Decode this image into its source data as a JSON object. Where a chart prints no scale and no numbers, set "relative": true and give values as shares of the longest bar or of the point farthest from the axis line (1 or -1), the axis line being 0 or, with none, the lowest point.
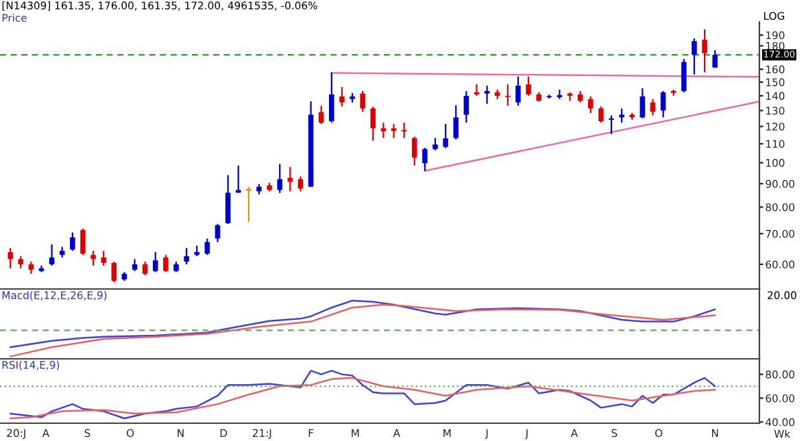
{
  "chart_data": [
    {
      "type": "candlestick",
      "title": "[N14309] 161.35, 176.00, 161.35, 172.00, 4961535, -0.06%",
      "subtitle": "Price",
      "x": [
        "2020-07-20",
        "2020-07-27",
        "2020-08-03",
        "2020-08-10",
        "2020-08-17",
        "2020-08-24",
        "2020-08-31",
        "2020-09-07",
        "2020-09-14",
        "2020-09-21",
        "2020-09-28",
        "2020-10-05",
        "2020-10-12",
        "2020-10-19",
        "2020-10-26",
        "2020-11-02",
        "2020-11-09",
        "2020-11-16",
        "2020-11-23",
        "2020-11-30",
        "2020-12-07",
        "2020-12-14",
        "2020-12-21",
        "2020-12-28",
        "2021-01-04",
        "2021-01-11",
        "2021-01-18",
        "2021-01-25",
        "2021-02-01",
        "2021-02-08",
        "2021-02-15",
        "2021-02-22",
        "2021-03-01",
        "2021-03-08",
        "2021-03-15",
        "2021-03-22",
        "2021-03-29",
        "2021-04-05",
        "2021-04-12",
        "2021-04-19",
        "2021-04-26",
        "2021-05-03",
        "2021-05-10",
        "2021-05-17",
        "2021-05-24",
        "2021-05-31",
        "2021-06-07",
        "2021-06-14",
        "2021-06-21",
        "2021-06-28",
        "2021-07-05",
        "2021-07-12",
        "2021-07-19",
        "2021-07-26",
        "2021-08-02",
        "2021-08-09",
        "2021-08-16",
        "2021-08-23",
        "2021-08-30",
        "2021-09-06",
        "2021-09-13",
        "2021-09-20",
        "2021-09-27",
        "2021-10-04",
        "2021-10-11",
        "2021-10-18",
        "2021-10-25",
        "2021-11-01",
        "2021-11-08"
      ],
      "ohlc": [
        [
          63.8,
          65.1,
          58.8,
          61.6
        ],
        [
          61.6,
          62.5,
          58.8,
          60.0
        ],
        [
          60.0,
          60.8,
          57.2,
          58.4
        ],
        [
          58.0,
          59.6,
          57.7,
          58.8
        ],
        [
          60.0,
          66.3,
          59.6,
          62.1
        ],
        [
          62.9,
          65.5,
          62.1,
          64.2
        ],
        [
          64.6,
          70.4,
          64.2,
          68.7
        ],
        [
          71.3,
          71.8,
          62.9,
          63.3
        ],
        [
          62.9,
          64.2,
          59.6,
          61.6
        ],
        [
          62.1,
          64.2,
          59.6,
          60.4
        ],
        [
          60.4,
          60.8,
          54.8,
          55.2
        ],
        [
          55.6,
          57.7,
          55.2,
          57.2
        ],
        [
          58.4,
          61.6,
          58.0,
          60.0
        ],
        [
          60.0,
          60.8,
          56.8,
          57.2
        ],
        [
          58.0,
          63.8,
          57.7,
          61.2
        ],
        [
          62.1,
          62.9,
          57.7,
          58.0
        ],
        [
          58.0,
          60.8,
          57.7,
          60.0
        ],
        [
          60.8,
          65.1,
          60.0,
          62.5
        ],
        [
          62.9,
          65.9,
          62.5,
          63.8
        ],
        [
          63.3,
          68.3,
          62.9,
          67.1
        ],
        [
          68.3,
          73.5,
          67.1,
          73.0
        ],
        [
          73.8,
          94.0,
          73.5,
          86.0
        ],
        [
          86.0,
          98.6,
          86.0,
          87.2
        ],
        [
          87.2,
          88.6,
          74.3,
          87.2
        ],
        [
          86.6,
          89.8,
          85.3,
          88.6
        ],
        [
          89.2,
          90.4,
          86.6,
          87.2
        ],
        [
          87.2,
          99.3,
          85.9,
          92.1
        ],
        [
          92.7,
          97.9,
          86.6,
          90.8
        ],
        [
          92.1,
          93.3,
          86.6,
          87.8
        ],
        [
          88.6,
          136.2,
          88.6,
          127.3
        ],
        [
          129.0,
          133.2,
          121.5,
          122.3
        ],
        [
          123.2,
          157.5,
          122.3,
          141.0
        ],
        [
          139.6,
          146.3,
          132.7,
          135.4
        ],
        [
          137.7,
          142.0,
          135.4,
          139.6
        ],
        [
          141.6,
          143.4,
          129.2,
          131.4
        ],
        [
          131.4,
          132.5,
          111.7,
          118.9
        ],
        [
          118.9,
          122.3,
          113.2,
          117.1
        ],
        [
          118.9,
          121.5,
          113.2,
          117.3
        ],
        [
          117.9,
          122.3,
          113.2,
          117.1
        ],
        [
          113.2,
          114.0,
          98.6,
          102.6
        ],
        [
          99.7,
          107.8,
          95.9,
          107.1
        ],
        [
          107.1,
          113.2,
          106.4,
          109.6
        ],
        [
          108.3,
          121.5,
          107.6,
          113.0
        ],
        [
          113.2,
          133.5,
          112.4,
          125.6
        ],
        [
          127.3,
          143.3,
          122.3,
          140.0
        ],
        [
          142.5,
          148.3,
          140.0,
          141.0
        ],
        [
          141.6,
          147.3,
          134.5,
          143.4
        ],
        [
          142.5,
          144.4,
          137.7,
          140.0
        ],
        [
          140.0,
          148.3,
          133.2,
          139.2
        ],
        [
          135.4,
          154.3,
          133.2,
          147.3
        ],
        [
          148.3,
          154.3,
          140.0,
          141.0
        ],
        [
          141.0,
          142.5,
          136.0,
          136.5
        ],
        [
          139.0,
          140.8,
          138.0,
          139.8
        ],
        [
          139.0,
          144.4,
          137.7,
          140.5
        ],
        [
          141.6,
          142.5,
          136.5,
          140.0
        ],
        [
          141.0,
          143.4,
          135.4,
          136.5
        ],
        [
          137.7,
          139.6,
          128.4,
          131.4
        ],
        [
          131.4,
          132.7,
          122.3,
          123.2
        ],
        [
          124.1,
          126.8,
          115.5,
          125.0
        ],
        [
          125.6,
          131.4,
          122.3,
          127.3
        ],
        [
          127.3,
          128.4,
          124.1,
          125.6
        ],
        [
          125.6,
          145.4,
          125.0,
          139.6
        ],
        [
          135.4,
          137.7,
          126.8,
          129.2
        ],
        [
          130.0,
          143.4,
          125.6,
          142.5
        ],
        [
          143.4,
          144.4,
          140.0,
          142.0
        ],
        [
          143.4,
          168.5,
          142.5,
          166.0
        ],
        [
          172.0,
          186.9,
          155.9,
          184.3
        ],
        [
          185.6,
          195.5,
          157.5,
          173.4
        ],
        [
          161.35,
          176.0,
          161.35,
          172.0
        ]
      ],
      "colors": [
        "#e00000",
        "#e00000",
        "#e00000",
        "#0000cc",
        "#0000cc",
        "#0000cc",
        "#0000cc",
        "#e00000",
        "#e00000",
        "#e00000",
        "#e00000",
        "#0000cc",
        "#0000cc",
        "#e00000",
        "#0000cc",
        "#e00000",
        "#0000cc",
        "#0000cc",
        "#0000cc",
        "#0000cc",
        "#0000cc",
        "#0000cc",
        "#0000cc",
        "#e69500",
        "#0000cc",
        "#e00000",
        "#0000cc",
        "#e00000",
        "#e00000",
        "#0000cc",
        "#e00000",
        "#0000cc",
        "#e00000",
        "#0000cc",
        "#e00000",
        "#e00000",
        "#e00000",
        "#e00000",
        "#e00000",
        "#e00000",
        "#0000cc",
        "#0000cc",
        "#0000cc",
        "#0000cc",
        "#0000cc",
        "#e00000",
        "#0000cc",
        "#e00000",
        "#e00000",
        "#0000cc",
        "#e00000",
        "#e00000",
        "#0000cc",
        "#0000cc",
        "#e00000",
        "#e00000",
        "#e00000",
        "#e00000",
        "#0000cc",
        "#0000cc",
        "#e00000",
        "#0000cc",
        "#e00000",
        "#0000cc",
        "#e00000",
        "#0000cc",
        "#0000cc",
        "#e00000",
        "#0000cc"
      ],
      "series": [
        {
          "type": "line",
          "x": [
            "2021-02-22",
            "2021-12-08"
          ],
          "values": [
            157,
            154
          ],
          "color": "#e070b0"
        },
        {
          "type": "line",
          "x": [
            "2021-04-26",
            "2021-12-08"
          ],
          "values": [
            96,
            136
          ],
          "color": "#e070b0"
        }
      ],
      "ref_lines": [
        {
          "axis": "y",
          "value": 172,
          "label": "172.00",
          "color": "#339933",
          "line_style": "dashed"
        }
      ],
      "log": true,
      "ylim": [
        53,
        203
      ],
      "yticks": [
        190,
        180,
        160,
        150,
        140,
        130,
        120,
        110,
        100,
        {
          "value": 90,
          "label": "90.00"
        },
        {
          "value": 80,
          "label": "80.00"
        },
        {
          "value": 70,
          "label": "70.00"
        },
        {
          "value": 60,
          "label": "60.00"
        }
      ],
      "xlim": [
        "2020-07-13",
        "2021-12-08"
      ],
      "tick_labels": "y",
      "annotations": [
        "LOG"
      ]
    },
    {
      "type": "line",
      "title": "Macd(E,12,E,26,E,9)",
      "relative": true,
      "tick_labels": false,
      "xlim": [
        "2020-07-13",
        "2021-12-08"
      ],
      "series": [
        {
          "color": "#4444cc",
          "x": [
            "2020-07-20",
            "2020-08-17",
            "2020-09-07",
            "2020-09-21",
            "2020-10-26",
            "2020-11-30",
            "2020-12-14",
            "2021-01-11",
            "2021-02-01",
            "2021-02-08",
            "2021-02-22",
            "2021-03-08",
            "2021-03-22",
            "2021-04-05",
            "2021-05-03",
            "2021-05-10",
            "2021-05-31",
            "2021-06-28",
            "2021-07-26",
            "2021-08-09",
            "2021-09-06",
            "2021-09-20",
            "2021-10-11",
            "2021-10-25",
            "2021-11-01",
            "2021-11-08"
          ],
          "values": [
            0.2,
            0.31,
            0.36,
            0.38,
            0.4,
            0.45,
            0.52,
            0.65,
            0.69,
            0.73,
            0.88,
            1.0,
            0.98,
            0.93,
            0.78,
            0.76,
            0.85,
            0.87,
            0.85,
            0.82,
            0.67,
            0.64,
            0.64,
            0.73,
            0.79,
            0.85
          ]
        },
        {
          "color": "#e06666",
          "x": [
            "2020-07-20",
            "2020-08-17",
            "2020-09-21",
            "2020-10-26",
            "2020-11-30",
            "2021-01-04",
            "2021-02-08",
            "2021-03-08",
            "2021-03-29",
            "2021-04-12",
            "2021-05-17",
            "2021-06-21",
            "2021-07-26",
            "2021-08-30",
            "2021-10-04",
            "2021-11-01",
            "2021-11-08"
          ],
          "values": [
            0.04,
            0.2,
            0.34,
            0.38,
            0.43,
            0.55,
            0.64,
            0.88,
            0.93,
            0.91,
            0.82,
            0.85,
            0.84,
            0.75,
            0.67,
            0.73,
            0.75
          ]
        }
      ],
      "ref_lines": [
        {
          "axis": "y",
          "value": 0.49,
          "color": "#66aa66",
          "line_style": "dashed"
        }
      ],
      "annotations": [
        "20.00"
      ]
    },
    {
      "type": "line",
      "title": "RSI(14,E,9)",
      "xlabel": "Wk",
      "xlim": [
        "2020-07-13",
        "2021-12-08"
      ],
      "ylim": [
        39,
        93
      ],
      "yticks": [
        {
          "value": 80,
          "label": "80.00"
        },
        {
          "value": 60,
          "label": "60.00"
        },
        {
          "value": 40,
          "label": "40.00"
        }
      ],
      "xticks": [
        {
          "value": "2020-07-24",
          "label": "20:J"
        },
        {
          "value": "2020-08-13",
          "label": "A"
        },
        {
          "value": "2020-09-10",
          "label": "S"
        },
        {
          "value": "2020-10-09",
          "label": "O"
        },
        {
          "value": "2020-11-12",
          "label": "N"
        },
        {
          "value": "2020-12-11",
          "label": "D"
        },
        {
          "value": "2021-01-06",
          "label": "21:J"
        },
        {
          "value": "2021-02-08",
          "label": "F"
        },
        {
          "value": "2021-03-10",
          "label": "M"
        },
        {
          "value": "2021-04-07",
          "label": "A"
        },
        {
          "value": "2021-05-11",
          "label": "M"
        },
        {
          "value": "2021-06-07",
          "label": "J"
        },
        {
          "value": "2021-07-04",
          "label": "J"
        },
        {
          "value": "2021-08-05",
          "label": "A"
        },
        {
          "value": "2021-09-01",
          "label": "S"
        },
        {
          "value": "2021-10-01",
          "label": "O"
        },
        {
          "value": "2021-11-08",
          "label": "N"
        }
      ],
      "series": [
        {
          "color": "#4444cc",
          "x": [
            "2020-07-20",
            "2020-07-27",
            "2020-08-10",
            "2020-08-17",
            "2020-08-31",
            "2020-09-07",
            "2020-09-21",
            "2020-10-05",
            "2020-10-19",
            "2020-10-26",
            "2020-11-02",
            "2020-11-09",
            "2020-11-23",
            "2020-12-07",
            "2020-12-14",
            "2020-12-28",
            "2021-01-11",
            "2021-01-18",
            "2021-02-01",
            "2021-02-08",
            "2021-02-15",
            "2021-02-22",
            "2021-03-01",
            "2021-03-08",
            "2021-03-15",
            "2021-03-22",
            "2021-03-29",
            "2021-04-12",
            "2021-04-19",
            "2021-05-03",
            "2021-05-10",
            "2021-05-24",
            "2021-06-07",
            "2021-06-21",
            "2021-07-05",
            "2021-07-12",
            "2021-07-26",
            "2021-08-02",
            "2021-08-16",
            "2021-08-23",
            "2021-09-06",
            "2021-09-13",
            "2021-09-20",
            "2021-09-27",
            "2021-10-04",
            "2021-10-11",
            "2021-10-25",
            "2021-11-01",
            "2021-11-08"
          ],
          "values": [
            47,
            46,
            44,
            49,
            55,
            51,
            49,
            43,
            47,
            48,
            49,
            51,
            53,
            62,
            71,
            71,
            72,
            71,
            69,
            83,
            80,
            83,
            80,
            79,
            71,
            65,
            64,
            64,
            55,
            56,
            58,
            71,
            71,
            68,
            73,
            64,
            67,
            66,
            58,
            52,
            55,
            53,
            62,
            56,
            63,
            63,
            73,
            77,
            70
          ]
        },
        {
          "color": "#e06666",
          "x": [
            "2020-07-20",
            "2020-08-03",
            "2020-08-24",
            "2020-09-21",
            "2020-10-12",
            "2020-11-09",
            "2020-12-07",
            "2020-12-28",
            "2021-01-18",
            "2021-02-08",
            "2021-02-22",
            "2021-03-08",
            "2021-03-29",
            "2021-04-19",
            "2021-05-10",
            "2021-05-31",
            "2021-07-05",
            "2021-08-09",
            "2021-09-13",
            "2021-10-04",
            "2021-10-25",
            "2021-11-08"
          ],
          "values": [
            43,
            44,
            49,
            50,
            47,
            48,
            55,
            63,
            70,
            71,
            76,
            77,
            70,
            67,
            62,
            67,
            70,
            64,
            58,
            62,
            66,
            67
          ]
        }
      ],
      "ref_lines": [
        {
          "axis": "y",
          "value": 70,
          "color": "#66aa66",
          "line_style": "dotted"
        }
      ]
    }
  ]
}
